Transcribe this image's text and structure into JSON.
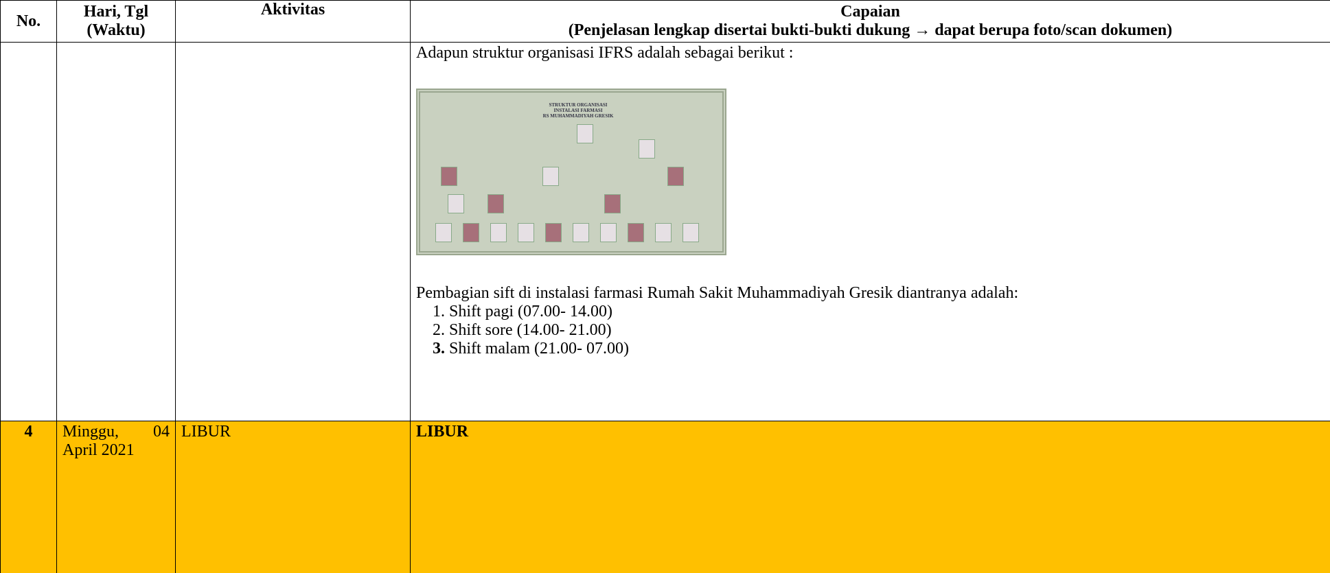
{
  "table": {
    "header": {
      "no": "No.",
      "date": [
        "Hari, Tgl",
        "(Waktu)"
      ],
      "activity": "Aktivitas",
      "result": [
        "Capaian",
        "(Penjelasan lengkap disertai bukti-bukti dukung → dapat berupa foto/scan dokumen)"
      ]
    },
    "rows": [
      {
        "result": {
          "intro": "Adapun struktur organisasi IFRS adalah sebagai berikut :",
          "image_title": [
            "STRUKTUR ORGANISASI",
            "INSTALASI FARMASI",
            "RS MUHAMMADIYAH GRESIK"
          ],
          "paragraph": "Pembagian sift di instalasi farmasi Rumah Sakit Muhammadiyah Gresik diantranya adalah:",
          "list": [
            "Shift pagi (07.00- 14.00)",
            "Shift sore (14.00- 21.00)",
            "Shift malam (21.00- 07.00)"
          ]
        }
      },
      {
        "no": "4",
        "date": "Minggu, 04 April 2021",
        "activity": "LIBUR",
        "result": "LIBUR"
      }
    ]
  }
}
